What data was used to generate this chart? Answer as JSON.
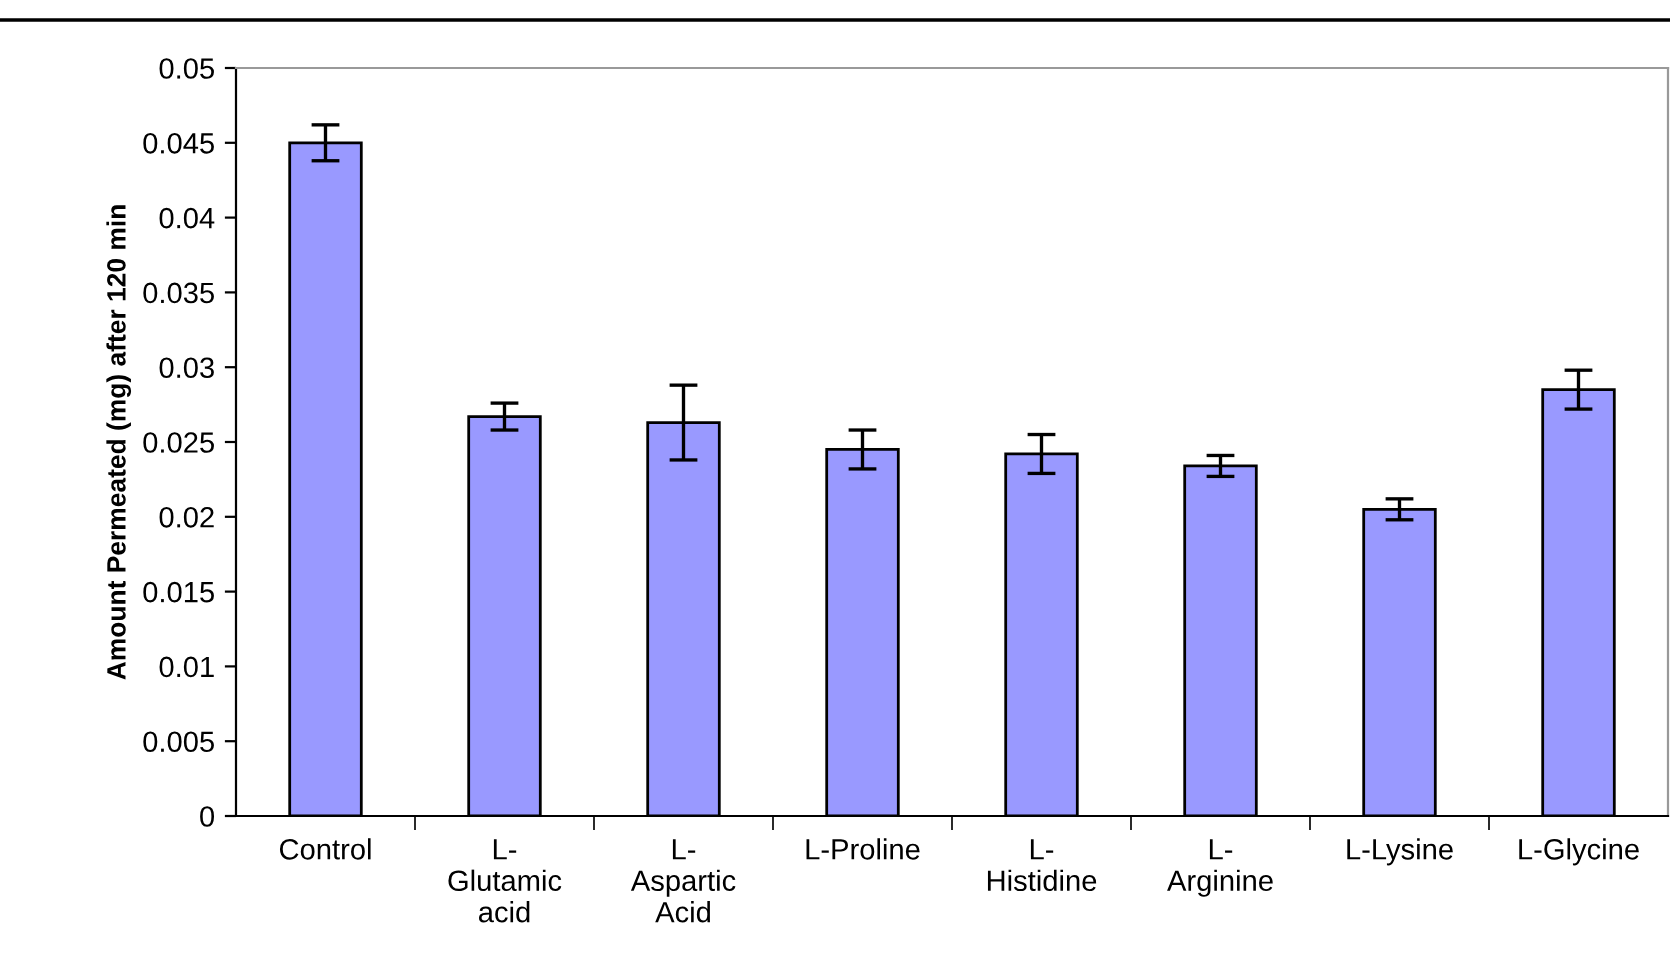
{
  "chart_data": {
    "type": "bar",
    "ylabel": "Amount Permeated (mg) after 120 min",
    "categories": [
      "Control",
      "L-Glutamic acid",
      "L-Aspartic Acid",
      "L-Proline",
      "L-Histidine",
      "L-Arginine",
      "L-Lysine",
      "L-Glycine"
    ],
    "values": [
      0.045,
      0.0267,
      0.0263,
      0.0245,
      0.0242,
      0.0234,
      0.0205,
      0.0285
    ],
    "errors": [
      0.0012,
      0.0009,
      0.0025,
      0.0013,
      0.0013,
      0.0007,
      0.0007,
      0.0013
    ],
    "color": "#9999ff",
    "ylim": [
      0,
      0.05
    ],
    "yticks": [
      0,
      0.005,
      0.01,
      0.015,
      0.02,
      0.025,
      0.03,
      0.035,
      0.04,
      0.045,
      0.05
    ],
    "grid": false,
    "legend": false
  }
}
